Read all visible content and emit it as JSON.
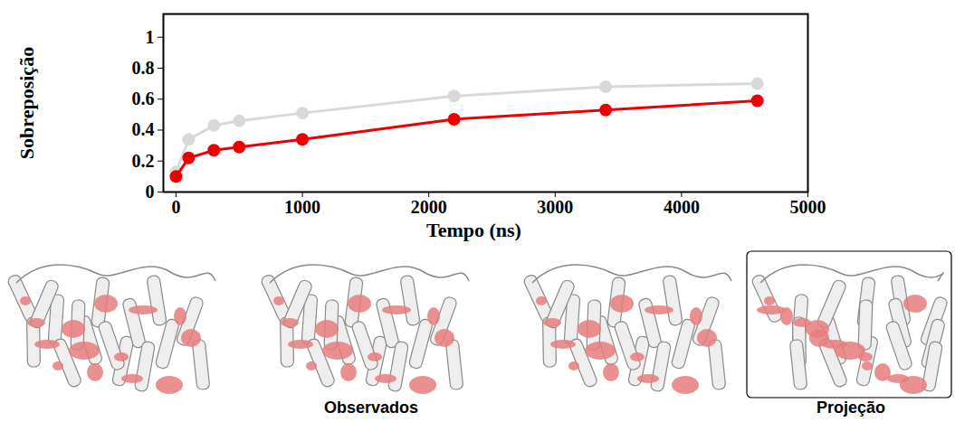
{
  "chart_data": {
    "type": "line",
    "x_label": "Tempo (ns)",
    "y_label": "Sobreposição",
    "x": [
      0,
      100,
      300,
      500,
      1000,
      2200,
      3400,
      4600
    ],
    "series": [
      {
        "color": "#d9d9d9",
        "values": [
          0.13,
          0.34,
          0.43,
          0.46,
          0.51,
          0.62,
          0.68,
          0.7
        ]
      },
      {
        "color": "#ee0000",
        "values": [
          0.1,
          0.22,
          0.27,
          0.29,
          0.34,
          0.47,
          0.53,
          0.59
        ]
      }
    ],
    "xlim": [
      -100,
      5000
    ],
    "xticks": [
      0,
      1000,
      2000,
      3000,
      4000,
      5000
    ],
    "ylim": [
      0,
      1.15
    ],
    "yticks": [
      0,
      0.2,
      0.4,
      0.6,
      0.8,
      1
    ],
    "marker": "circle",
    "annotations": [
      "Observados",
      "Projeção"
    ]
  }
}
